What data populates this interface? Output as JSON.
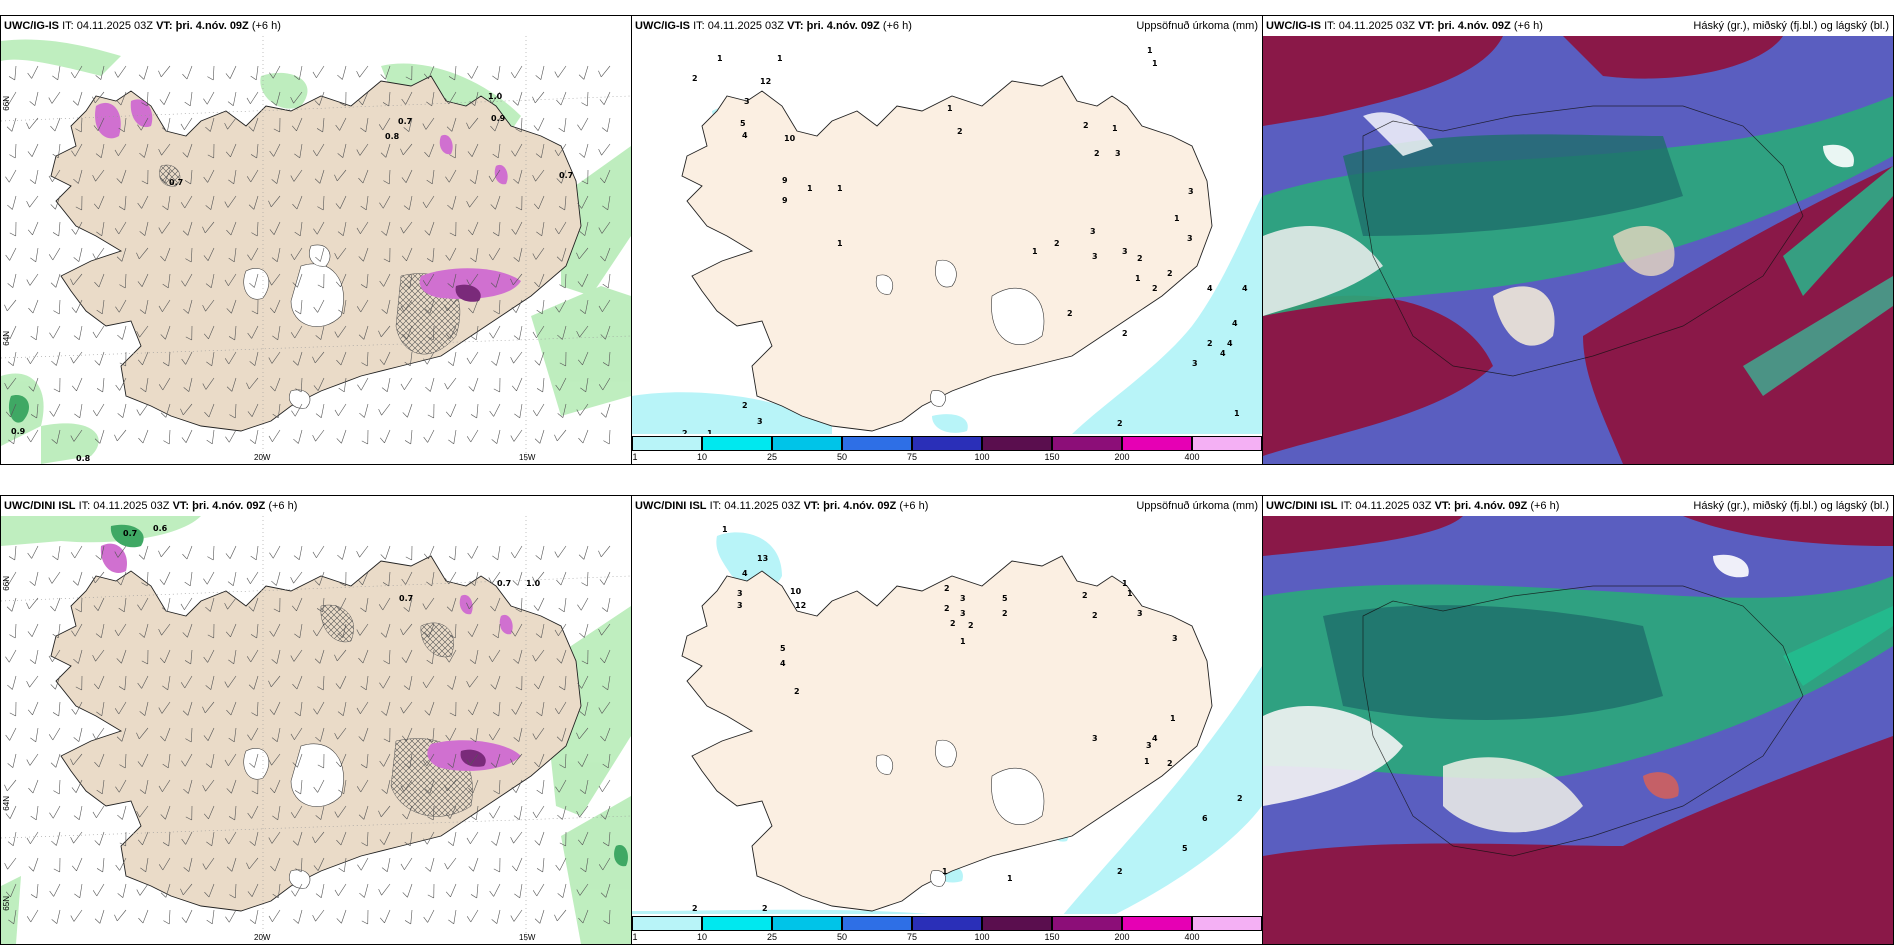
{
  "panels": {
    "p1": {
      "model": "UWC/IG-IS",
      "it_label": "IT:",
      "it_value": "04.11.2025 03Z",
      "vt_label": "VT:",
      "vt_value": "þri. 4.nóv. 09Z",
      "lead": "(+6 h)"
    },
    "p2": {
      "model": "UWC/IG-IS",
      "it_label": "IT:",
      "it_value": "04.11.2025 03Z",
      "vt_label": "VT:",
      "vt_value": "þri. 4.nóv. 09Z",
      "lead": "(+6 h)",
      "right": "Uppsöfnuð úrkoma (mm)"
    },
    "p3": {
      "model": "UWC/IG-IS",
      "it_label": "IT:",
      "it_value": "04.11.2025 03Z",
      "vt_label": "VT:",
      "vt_value": "þri. 4.nóv. 09Z",
      "lead": "(+6 h)",
      "right": "Háský (gr.), miðský (fj.bl.) og lágský (bl.)"
    },
    "p4": {
      "model": "UWC/DINI ISL",
      "it_label": "IT:",
      "it_value": "04.11.2025 03Z",
      "vt_label": "VT:",
      "vt_value": "þri. 4.nóv. 09Z",
      "lead": "(+6 h)"
    },
    "p5": {
      "model": "UWC/DINI ISL",
      "it_label": "IT:",
      "it_value": "04.11.2025 03Z",
      "vt_label": "VT:",
      "vt_value": "þri. 4.nóv. 09Z",
      "lead": "(+6 h)",
      "right": "Uppsöfnuð úrkoma (mm)"
    },
    "p6": {
      "model": "UWC/DINI ISL",
      "it_label": "IT:",
      "it_value": "04.11.2025 03Z",
      "vt_label": "VT:",
      "vt_value": "þri. 4.nóv. 09Z",
      "lead": "(+6 h)",
      "right": "Háský (gr.), miðský (fj.bl.) og lágský (bl.)"
    }
  },
  "axes": {
    "lat66": "66N",
    "lat64": "64N",
    "lat65b": "65N",
    "lon20": "20W",
    "lon15": "15W"
  },
  "colorbar": {
    "labels": [
      "1",
      "10",
      "25",
      "50",
      "75",
      "100",
      "150",
      "200",
      "400"
    ],
    "colors": [
      "#b8f4f8",
      "#00e8ef",
      "#00c4e8",
      "#2e6fe6",
      "#2a2fb8",
      "#5a0e4e",
      "#8c0e78",
      "#e600b4",
      "#f4b0f4"
    ]
  },
  "p1_labels": [
    "0.7",
    "1.0",
    "0.9",
    "0.8",
    "0.7",
    "0.7",
    "0.9",
    "0.8"
  ],
  "p2_labels": [
    "1",
    "2",
    "12",
    "3",
    "5",
    "4",
    "10",
    "9",
    "9",
    "1",
    "1",
    "1",
    "1",
    "2",
    "2",
    "1",
    "3",
    "2",
    "3",
    "1",
    "2",
    "2",
    "2",
    "1",
    "3",
    "3",
    "3",
    "1",
    "2",
    "2",
    "2",
    "4",
    "4",
    "2",
    "4",
    "1",
    "1",
    "2",
    "2",
    "3",
    "1",
    "2",
    "4",
    "3",
    "4",
    "3",
    "1",
    "1"
  ],
  "p4_labels": [
    "0.7",
    "0.6",
    "0.7",
    "1.0",
    "0.7"
  ],
  "p5_labels": [
    "1",
    "13",
    "4",
    "3",
    "3",
    "10",
    "12",
    "5",
    "4",
    "2",
    "2",
    "2",
    "3",
    "3",
    "2",
    "2",
    "5",
    "2",
    "1",
    "2",
    "2",
    "1",
    "1",
    "3",
    "3",
    "4",
    "3",
    "1",
    "1",
    "2",
    "6",
    "5",
    "3",
    "2",
    "1",
    "1",
    "1",
    "2",
    "2",
    "2"
  ]
}
